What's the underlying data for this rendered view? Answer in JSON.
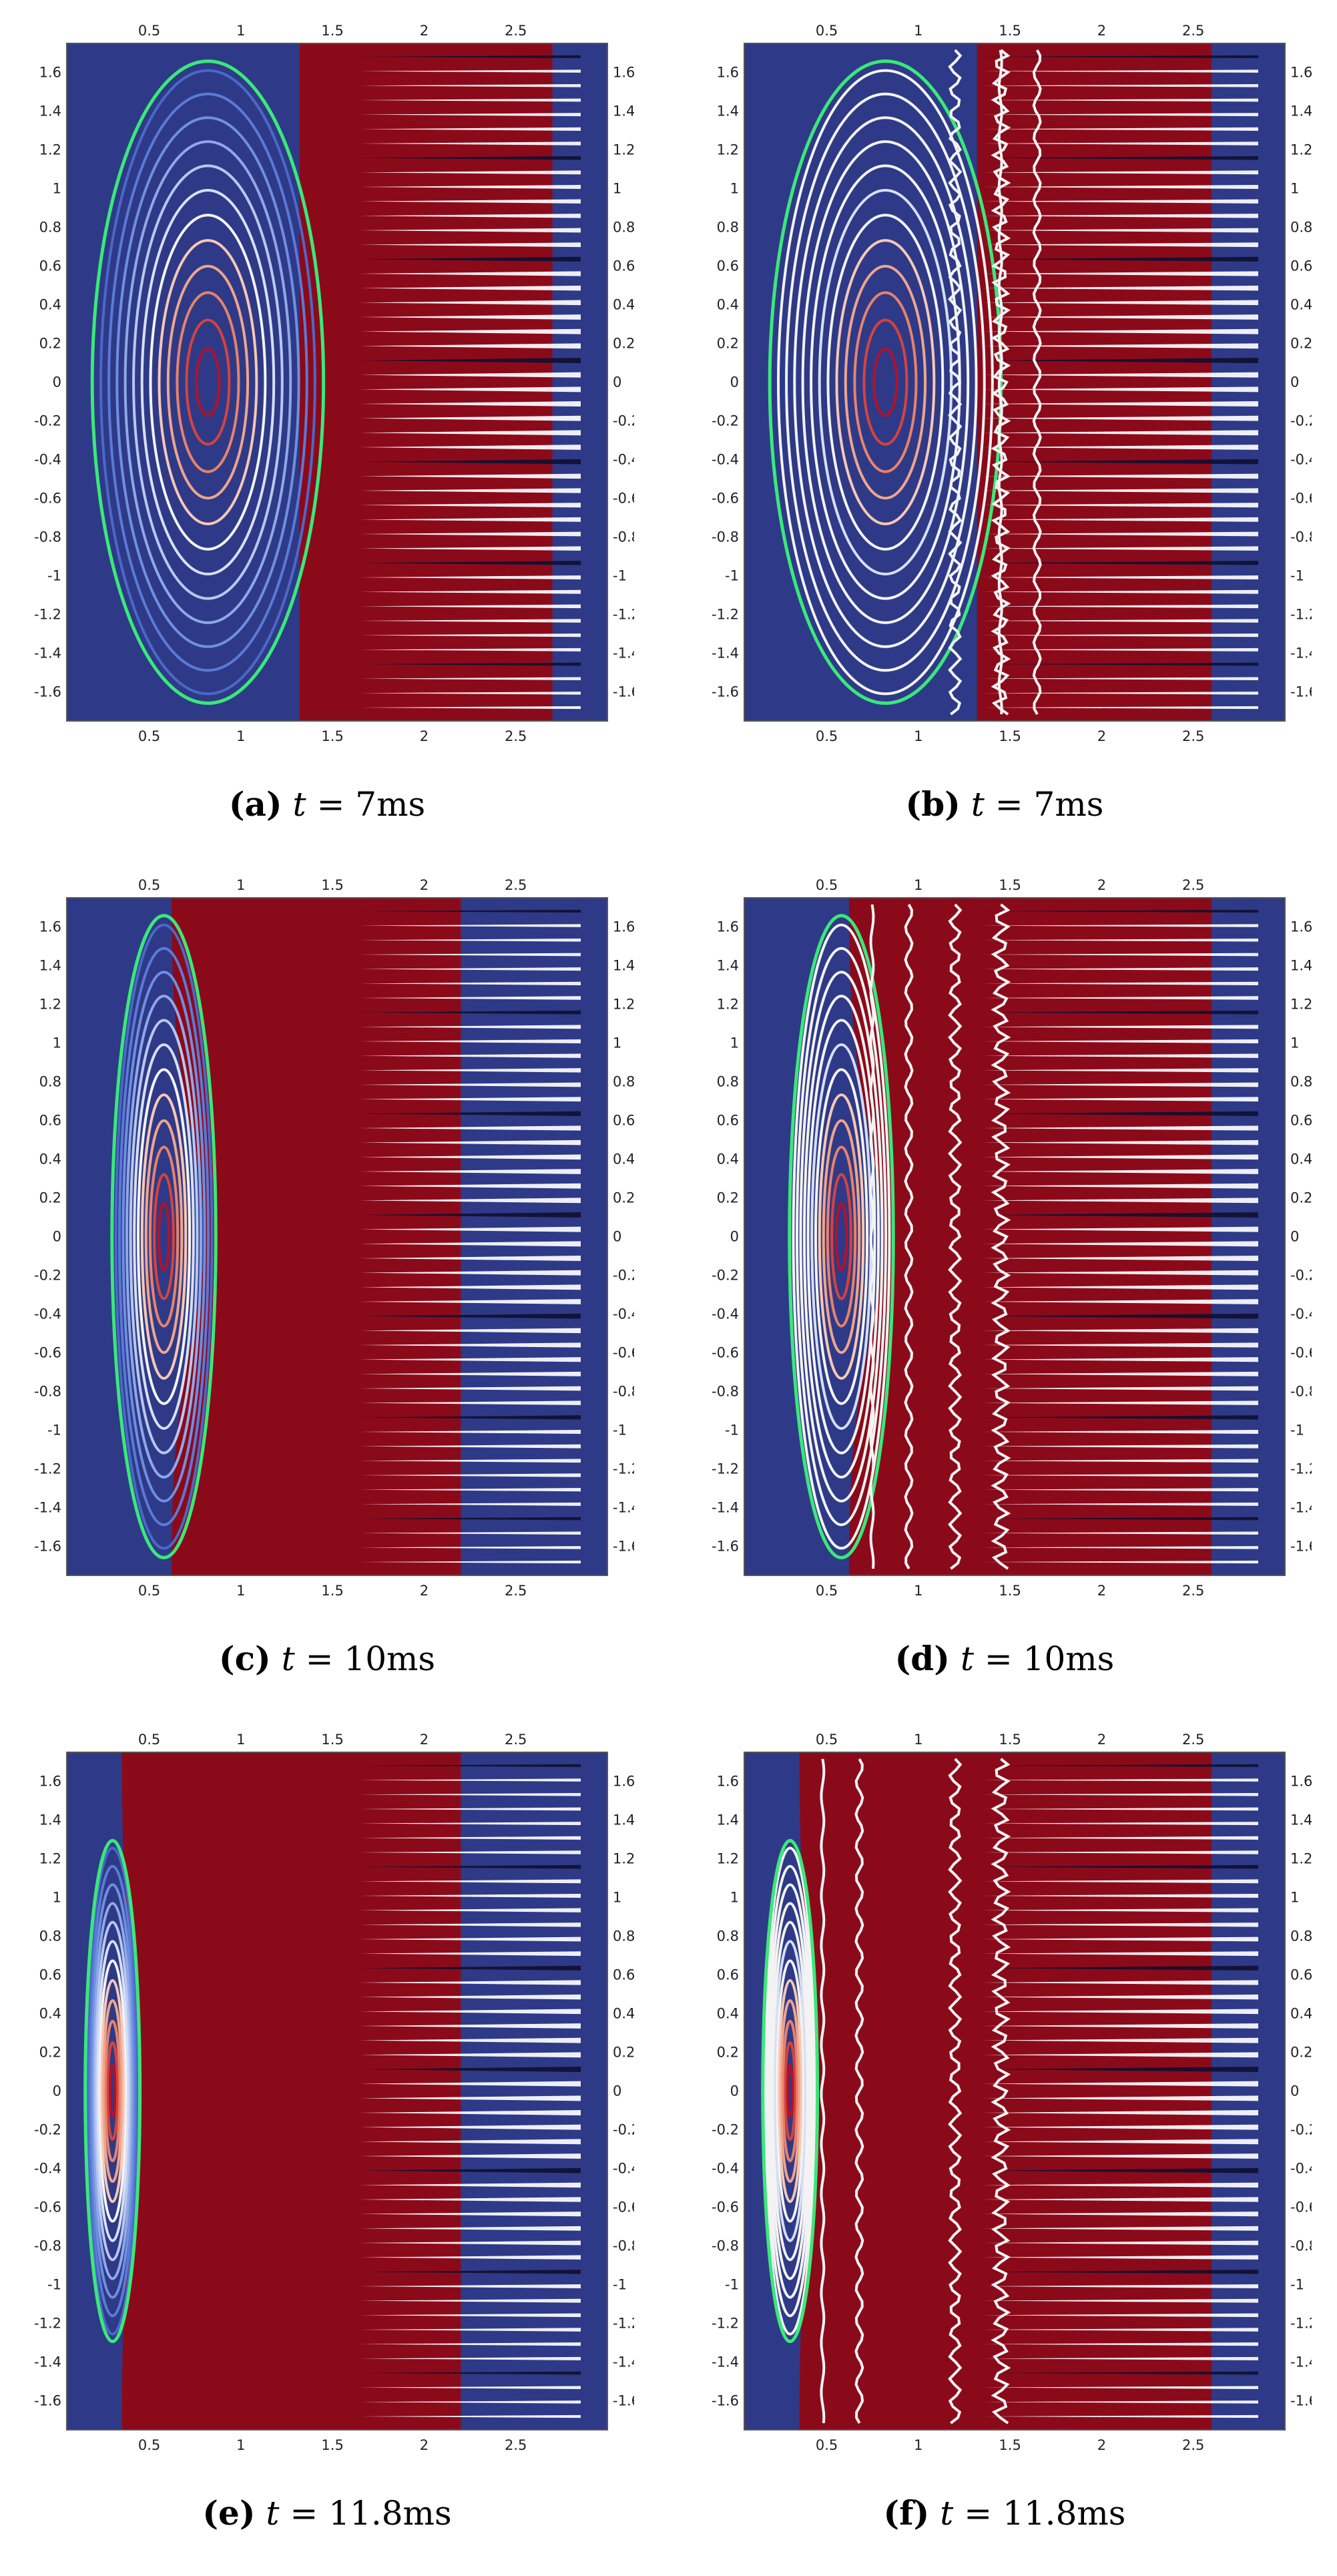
{
  "x_ticks": [
    "0.5",
    "1",
    "1.5",
    "2",
    "2.5"
  ],
  "y_ticks": [
    "1.6",
    "1.4",
    "1.2",
    "1",
    "0.8",
    "0.6",
    "0.4",
    "0.2",
    "0",
    "-0.2",
    "-0.4",
    "-0.6",
    "-0.8",
    "-1",
    "-1.2",
    "-1.4",
    "-1.6"
  ],
  "panels": [
    {
      "letter": "(a)",
      "lhs": "t",
      "eq": "=",
      "value": "7",
      "unit": "ms",
      "variant": "flux",
      "boundary": 1.32,
      "coreScale": 1.0
    },
    {
      "letter": "(b)",
      "lhs": "t",
      "eq": "=",
      "value": "7",
      "unit": "ms",
      "variant": "contour",
      "boundary": 1.32,
      "coreScale": 1.0
    },
    {
      "letter": "(c)",
      "lhs": "t",
      "eq": "=",
      "value": "10",
      "unit": "ms",
      "variant": "flux",
      "boundary": 0.62,
      "coreScale": 0.75
    },
    {
      "letter": "(d)",
      "lhs": "t",
      "eq": "=",
      "value": "10",
      "unit": "ms",
      "variant": "contour",
      "boundary": 0.62,
      "coreScale": 0.75
    },
    {
      "letter": "(e)",
      "lhs": "t",
      "eq": "=",
      "value": "11.8",
      "unit": "ms",
      "variant": "flux",
      "boundary": 0.35,
      "coreScale": 0.45
    },
    {
      "letter": "(f)",
      "lhs": "t",
      "eq": "=",
      "value": "11.8",
      "unit": "ms",
      "variant": "contour",
      "boundary": 0.35,
      "coreScale": 0.45
    }
  ],
  "colors": {
    "background_blue": "#2e3a87",
    "hot_red": "#8b0a1a",
    "separatrix_green": "#3ae87a",
    "contour_warm": "#e8826a",
    "contour_cool": "#8fa8e8",
    "contour_white": "#f3f3f3"
  }
}
